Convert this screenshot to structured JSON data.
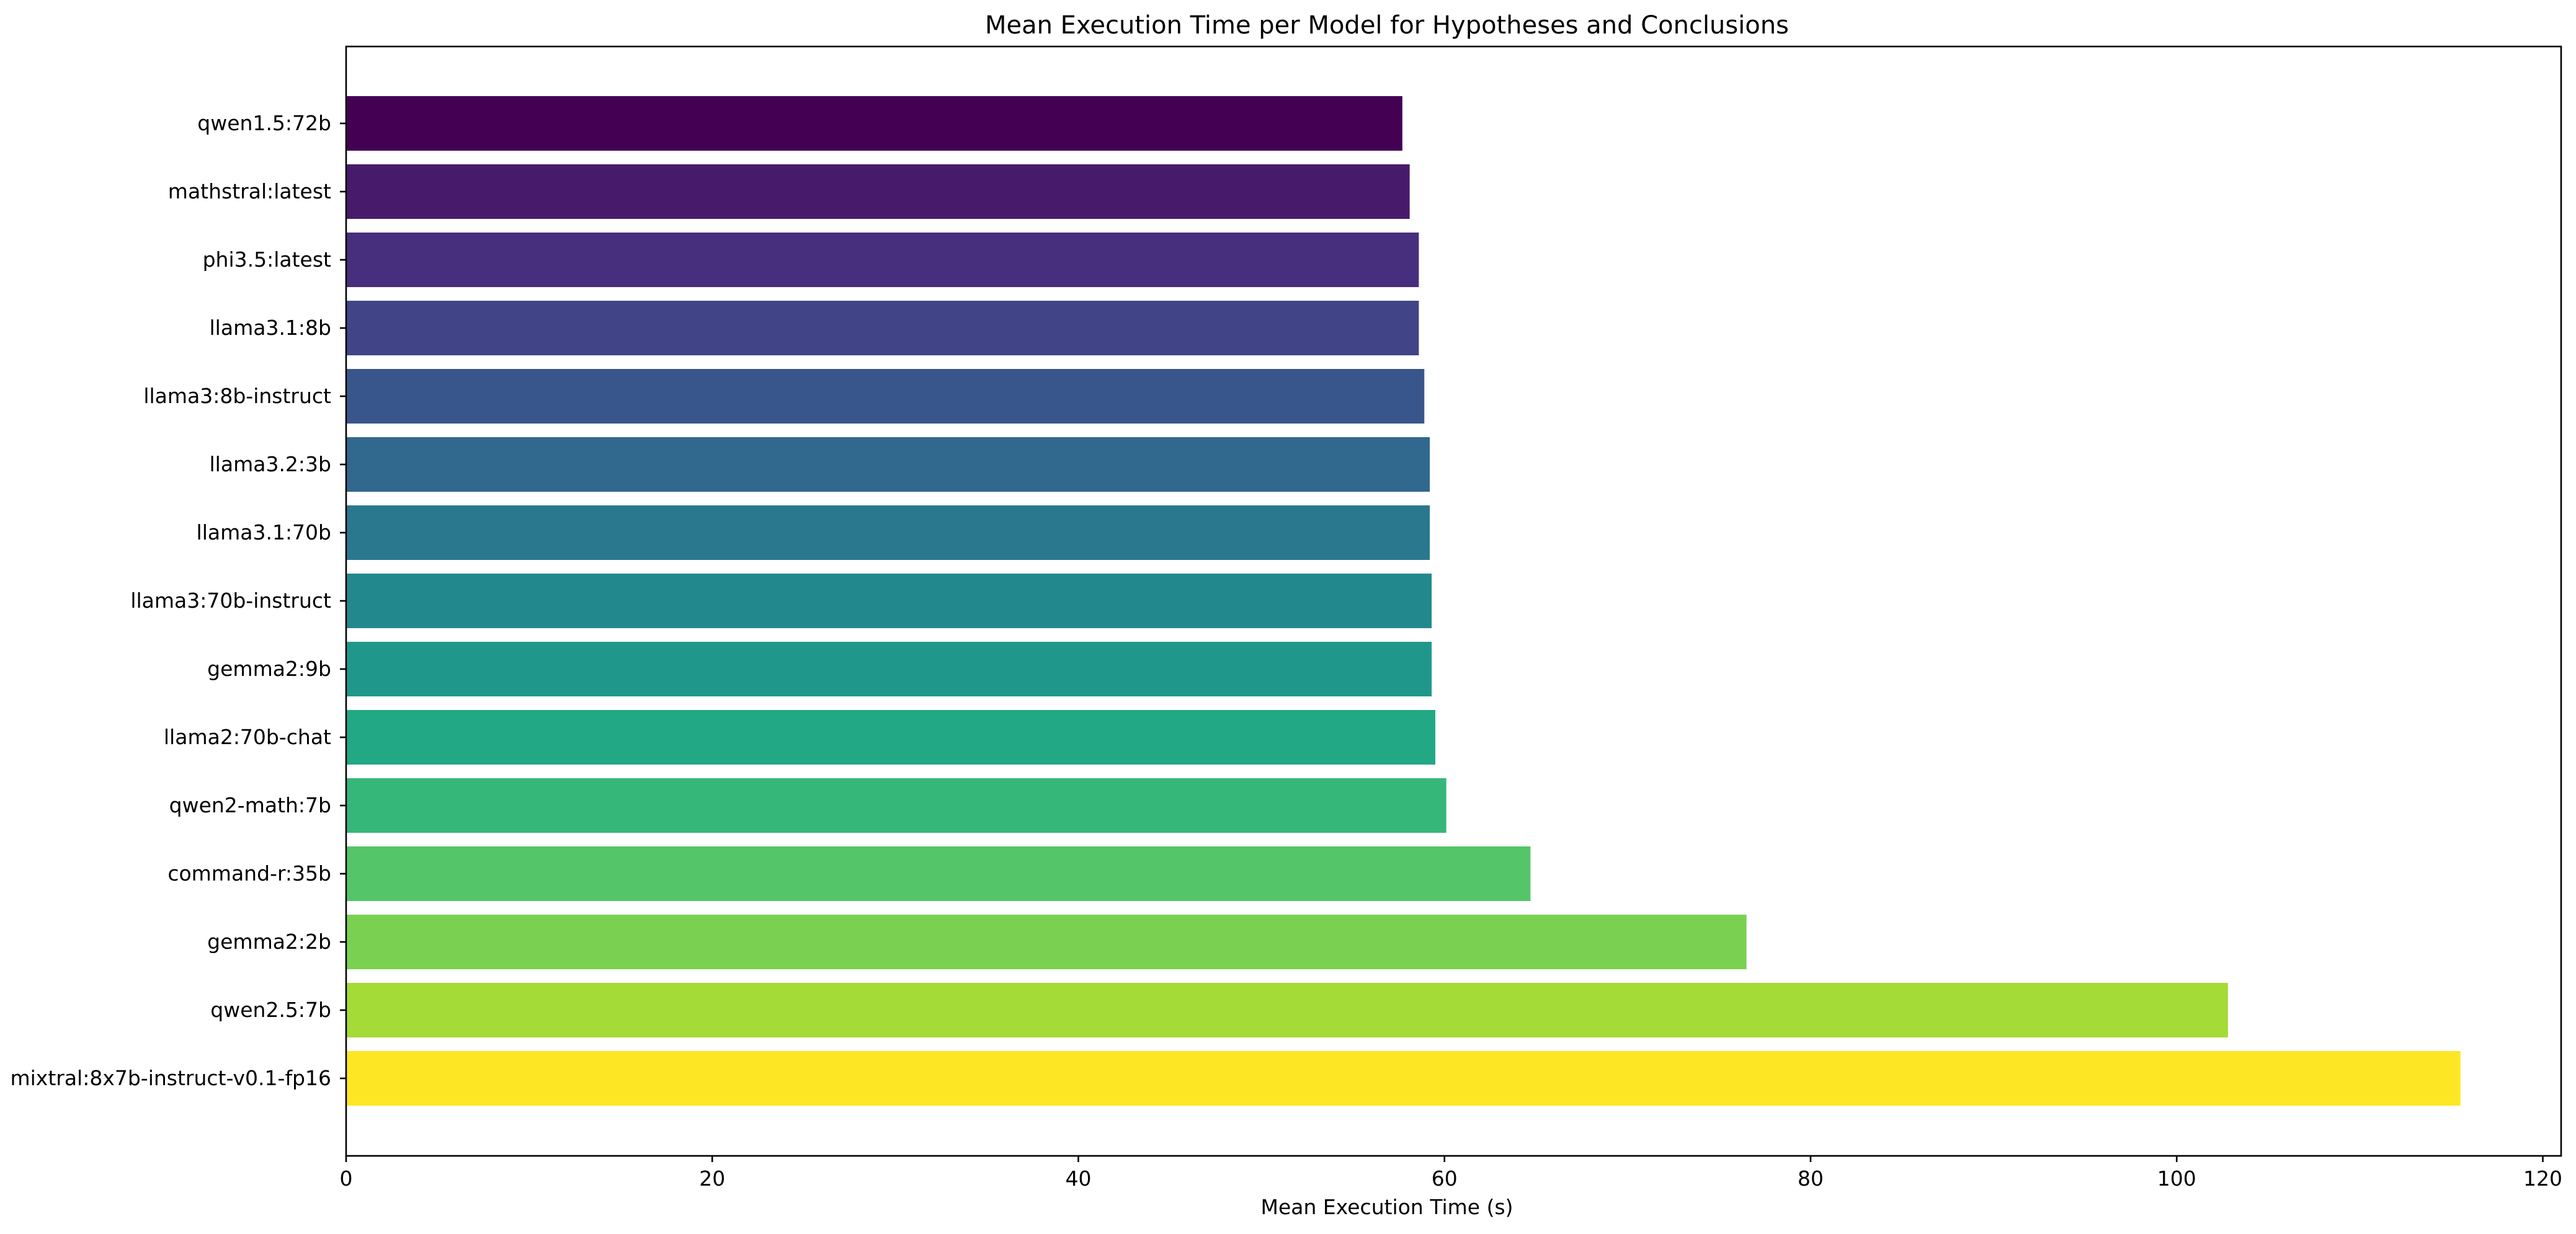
{
  "chart_data": {
    "type": "bar",
    "orientation": "horizontal",
    "title": "Mean Execution Time per Model for Hypotheses and Conclusions",
    "xlabel": "Mean Execution Time (s)",
    "ylabel": "",
    "xlim": [
      0,
      121
    ],
    "xticks": [
      0,
      20,
      40,
      60,
      80,
      100,
      120
    ],
    "grid": false,
    "legend": "none",
    "colormap": "viridis",
    "categories": [
      "qwen1.5:72b",
      "mathstral:latest",
      "phi3.5:latest",
      "llama3.1:8b",
      "llama3:8b-instruct",
      "llama3.2:3b",
      "llama3.1:70b",
      "llama3:70b-instruct",
      "gemma2:9b",
      "llama2:70b-chat",
      "qwen2-math:7b",
      "command-r:35b",
      "gemma2:2b",
      "qwen2.5:7b",
      "mixtral:8x7b-instruct-v0.1-fp16"
    ],
    "values": [
      57.7,
      58.1,
      58.6,
      58.6,
      58.9,
      59.2,
      59.2,
      59.3,
      59.3,
      59.5,
      60.1,
      64.7,
      76.5,
      102.8,
      115.5
    ],
    "colors": [
      "#440154",
      "#481a6c",
      "#472f7d",
      "#414487",
      "#39568c",
      "#31688e",
      "#2a788e",
      "#23888e",
      "#1f988b",
      "#22a884",
      "#35b779",
      "#54c568",
      "#7ad151",
      "#a5db36",
      "#fde725"
    ]
  }
}
